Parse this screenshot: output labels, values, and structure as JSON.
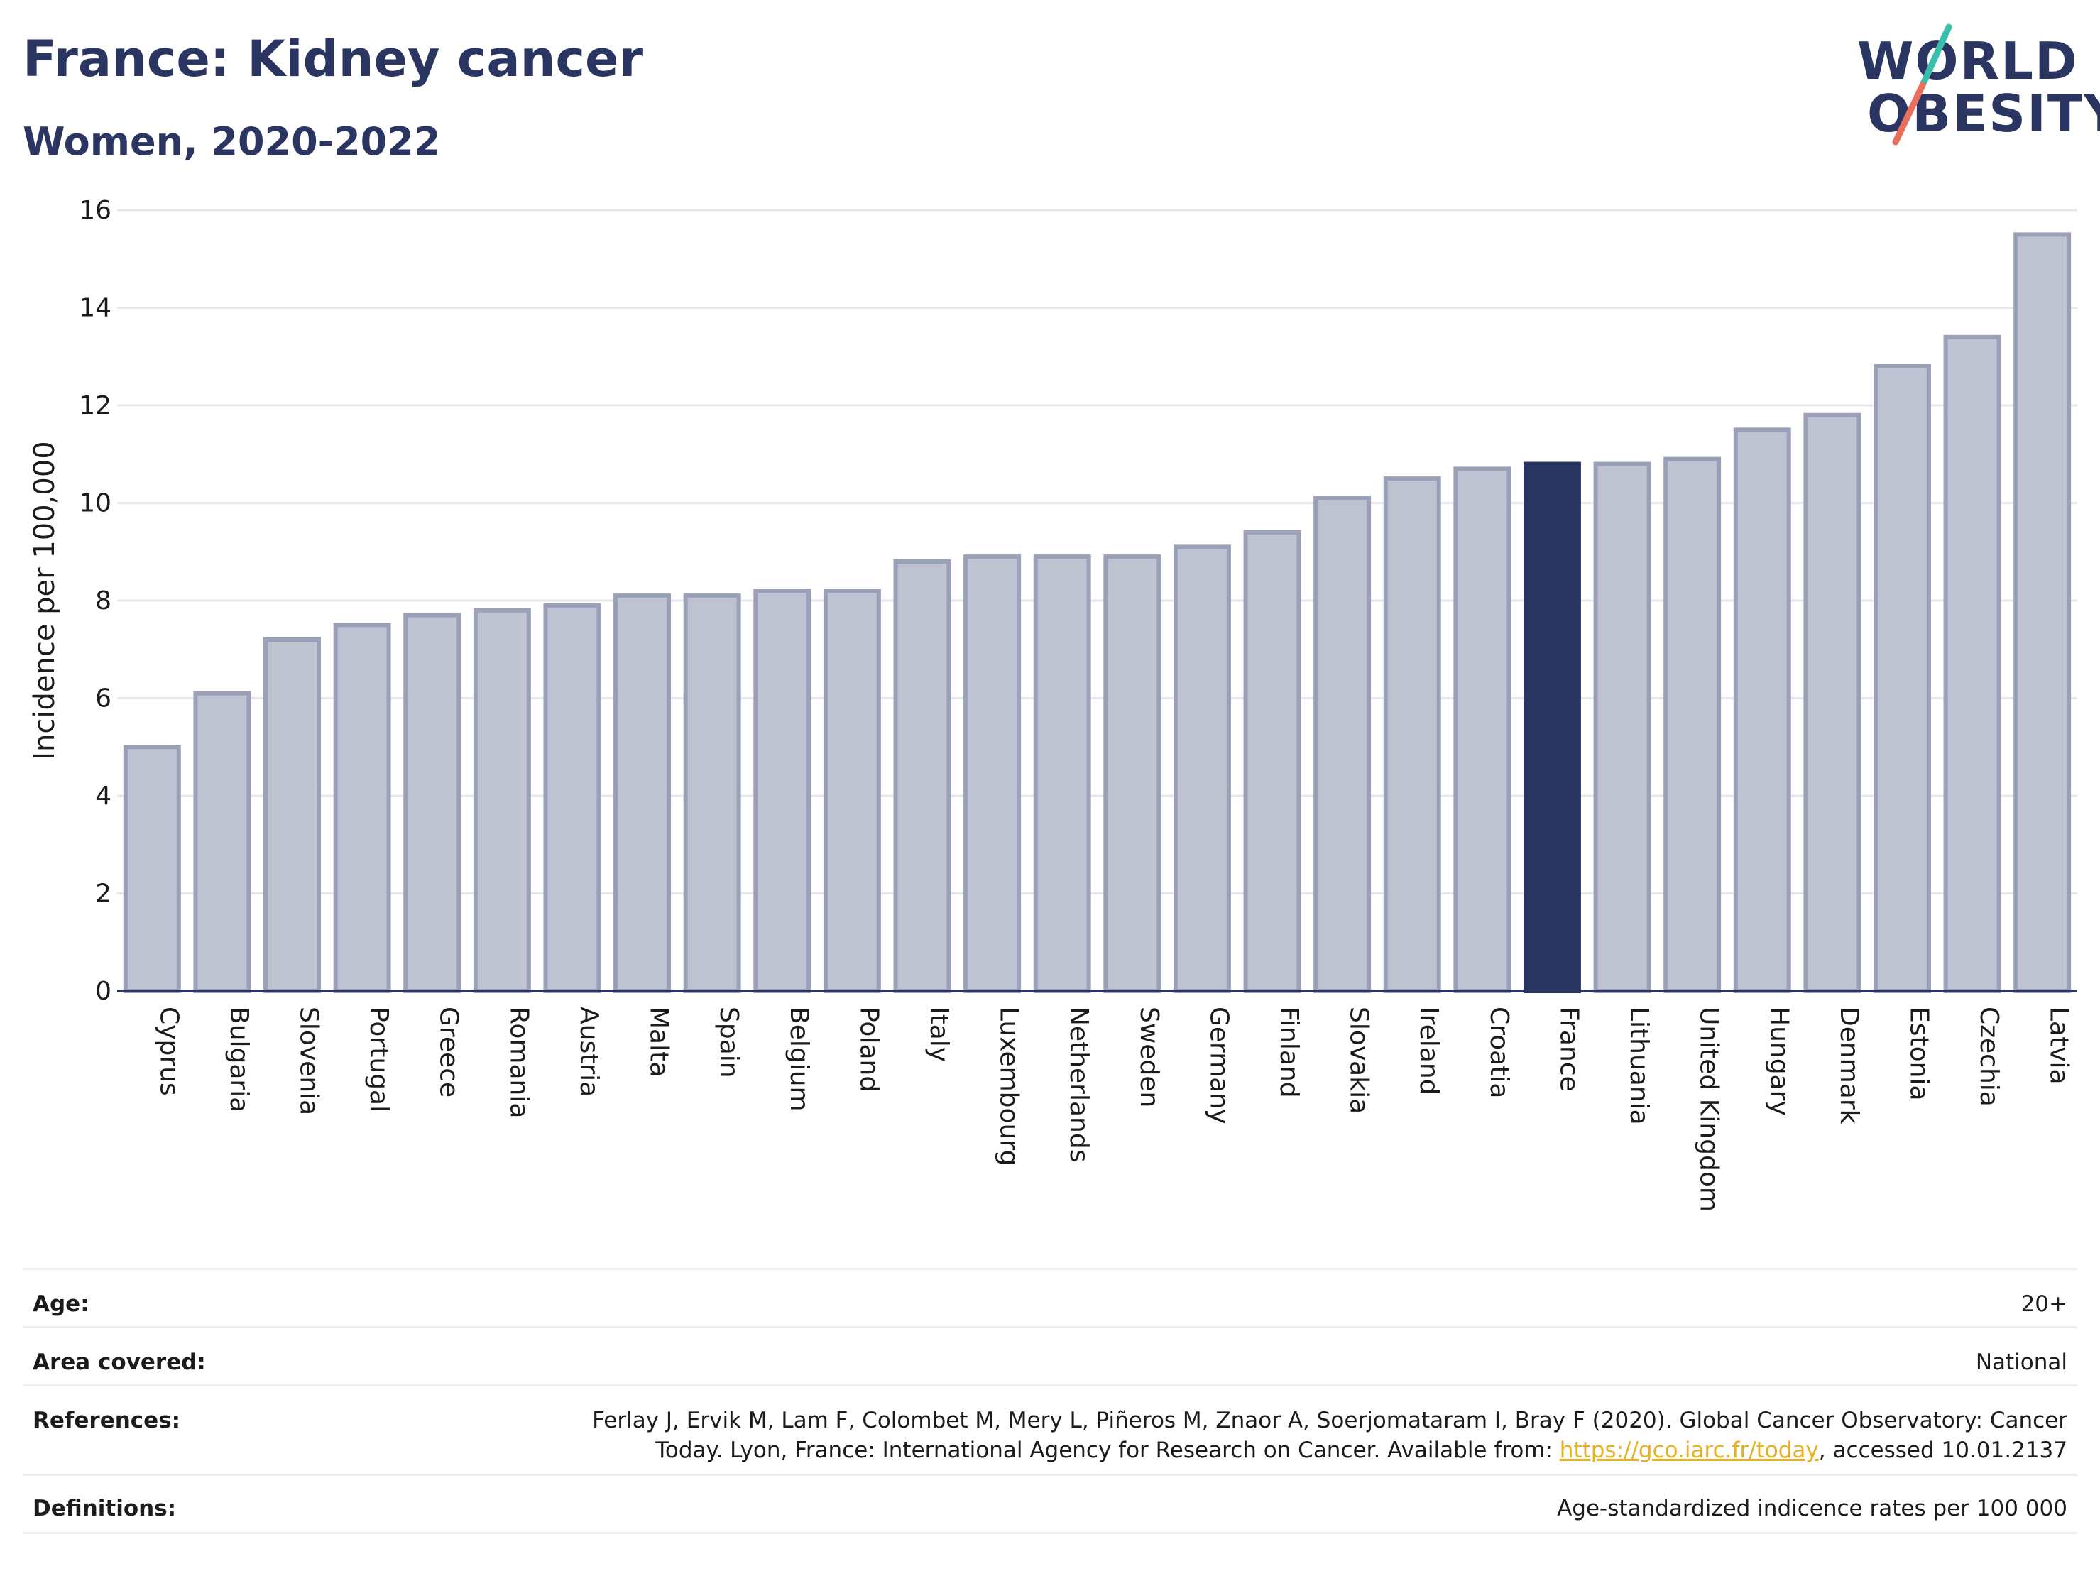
{
  "header": {
    "title": "France: Kidney cancer",
    "subtitle": "Women, 2020-2022"
  },
  "logo": {
    "line1": "WORLD",
    "line2": "OBESITY",
    "colors": {
      "text": "#2b3561",
      "slash_top": "#3bbfad",
      "slash_bottom": "#e8705c"
    }
  },
  "chart_data": {
    "type": "bar",
    "ylabel": "Incidence per 100,000",
    "ylim": [
      0,
      16
    ],
    "yticks": [
      0,
      2,
      4,
      6,
      8,
      10,
      12,
      14,
      16
    ],
    "categories": [
      "Cyprus",
      "Bulgaria",
      "Slovenia",
      "Portugal",
      "Greece",
      "Romania",
      "Austria",
      "Malta",
      "Spain",
      "Belgium",
      "Poland",
      "Italy",
      "Luxembourg",
      "Netherlands",
      "Sweden",
      "Germany",
      "Finland",
      "Slovakia",
      "Ireland",
      "Croatia",
      "France",
      "Lithuania",
      "United Kingdom",
      "Hungary",
      "Denmark",
      "Estonia",
      "Czechia",
      "Latvia"
    ],
    "values": [
      5.0,
      6.1,
      7.2,
      7.5,
      7.7,
      7.8,
      7.9,
      8.1,
      8.1,
      8.2,
      8.2,
      8.8,
      8.9,
      8.9,
      8.9,
      9.1,
      9.4,
      10.1,
      10.5,
      10.7,
      10.8,
      10.8,
      10.9,
      11.5,
      11.8,
      12.8,
      13.4,
      15.5
    ],
    "highlight": "France",
    "colors": {
      "bar": "#bfc2d0",
      "bar_border": "#9aa0b8",
      "highlight": "#2b3561",
      "grid": "#e6e7ee",
      "axis": "#2b3561"
    },
    "grid": true
  },
  "meta": {
    "age_label": "Age:",
    "age_value": "20+",
    "area_label": "Area covered:",
    "area_value": "National",
    "references_label": "References:",
    "references_line1": "Ferlay J, Ervik M, Lam F, Colombet M, Mery L, Piñeros M, Znaor A, Soerjomataram I, Bray F (2020). Global Cancer Observatory: Cancer",
    "references_line2_pre": "Today. Lyon, France: International Agency for Research on Cancer. Available from: ",
    "references_link": "https://gco.iarc.fr/today",
    "references_line2_post": ", accessed 10.01.2137",
    "definitions_label": "Definitions:",
    "definitions_value": "Age-standardized indicence rates per 100 000"
  }
}
